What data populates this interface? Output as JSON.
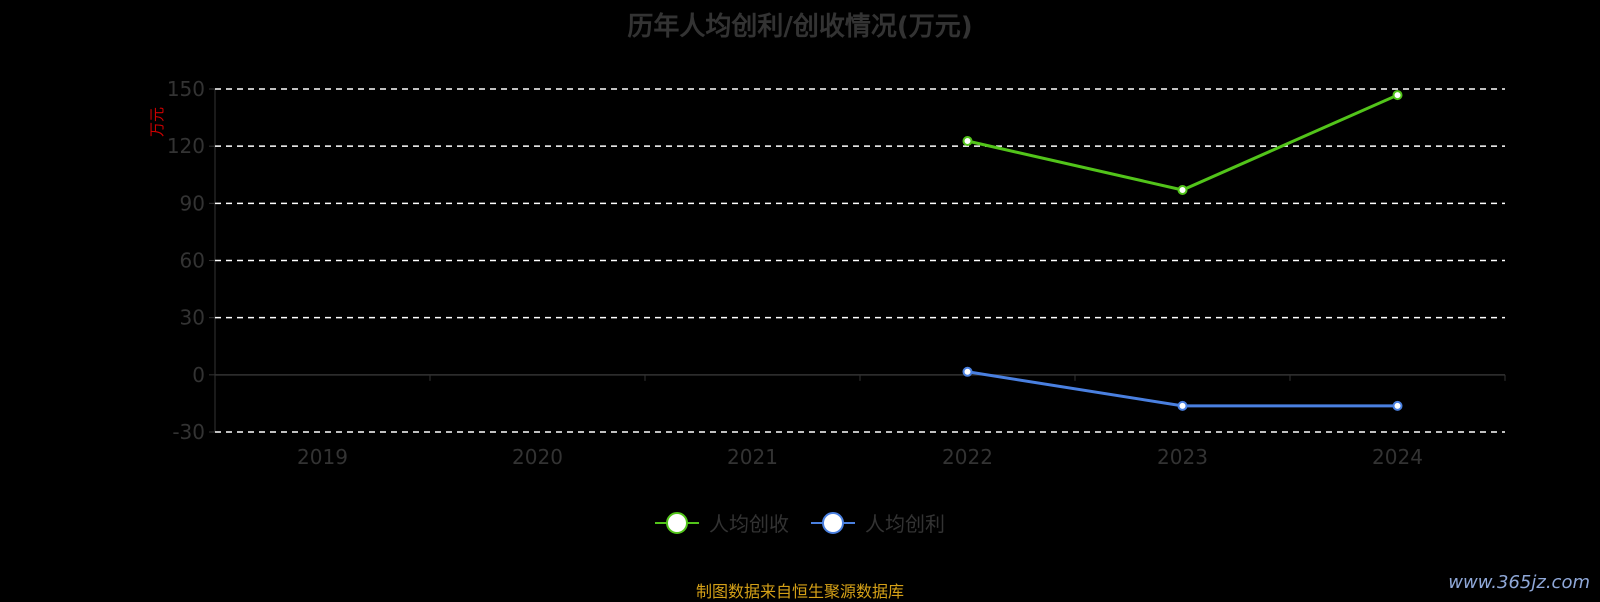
{
  "chart_data": {
    "type": "line",
    "title": "历年人均创利/创收情况(万元)",
    "ylabel": "万元",
    "categories": [
      "2019",
      "2020",
      "2021",
      "2022",
      "2023",
      "2024"
    ],
    "yticks": [
      -30,
      0,
      30,
      60,
      90,
      120,
      150
    ],
    "ylim": [
      -30,
      150
    ],
    "grid": true,
    "legend_position": "bottom",
    "series": [
      {
        "name": "人均创收",
        "color": "#52c41a",
        "values": [
          null,
          null,
          null,
          122.7,
          97.0,
          146.8
        ]
      },
      {
        "name": "人均创利",
        "color": "#4a80e0",
        "values": [
          null,
          null,
          null,
          1.6,
          -16.3,
          -16.3
        ]
      }
    ]
  },
  "footer": {
    "source": "制图数据来自恒生聚源数据库",
    "watermark": "www.365jz.com"
  }
}
